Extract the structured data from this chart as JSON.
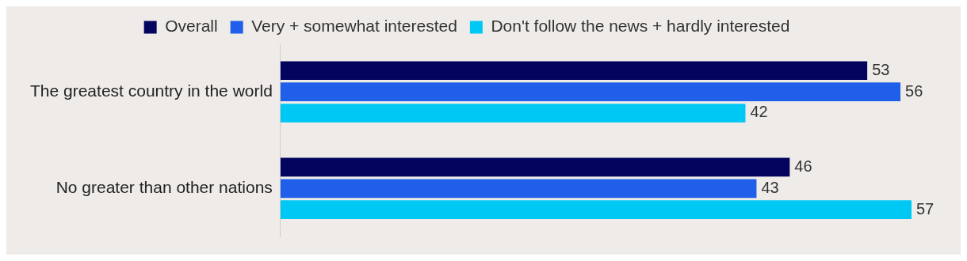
{
  "chart_data": {
    "type": "bar",
    "orientation": "horizontal",
    "categories": [
      "The greatest country in the world",
      "No greater than other nations"
    ],
    "series": [
      {
        "name": "Overall",
        "color": "#03045e",
        "values": [
          53,
          46
        ]
      },
      {
        "name": "Very + somewhat interested",
        "color": "#1f5fea",
        "values": [
          56,
          43
        ]
      },
      {
        "name": "Don't follow the news + hardly interested",
        "color": "#00c8f5",
        "values": [
          42,
          57
        ]
      }
    ],
    "data_labels": true,
    "legend": "top"
  }
}
